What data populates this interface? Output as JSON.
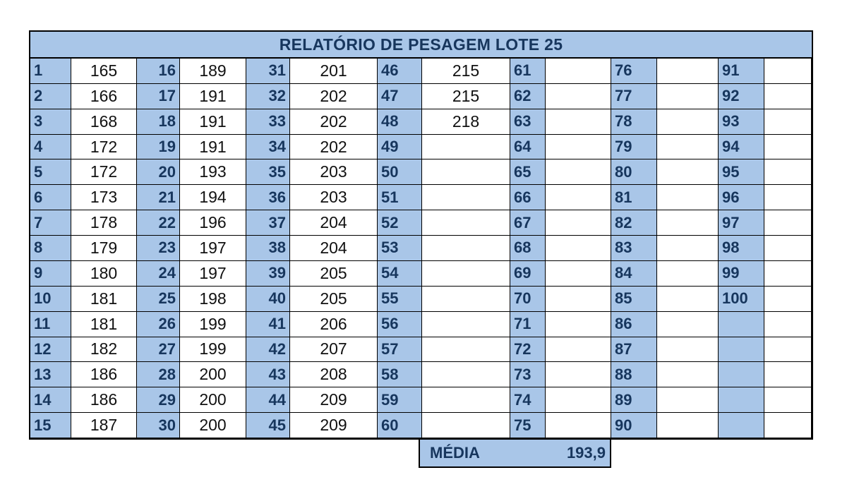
{
  "title": "RELATÓRIO DE PESAGEM LOTE 25",
  "weights": [
    "165",
    "166",
    "168",
    "172",
    "172",
    "173",
    "178",
    "179",
    "180",
    "181",
    "181",
    "182",
    "186",
    "186",
    "187",
    "189",
    "191",
    "191",
    "191",
    "193",
    "194",
    "196",
    "197",
    "197",
    "198",
    "199",
    "199",
    "200",
    "200",
    "200",
    "201",
    "202",
    "202",
    "202",
    "203",
    "203",
    "204",
    "204",
    "205",
    "205",
    "206",
    "207",
    "208",
    "209",
    "209",
    "215",
    "215",
    "218",
    "",
    "",
    "",
    "",
    "",
    "",
    "",
    "",
    "",
    "",
    "",
    "",
    "",
    "",
    "",
    "",
    "",
    "",
    "",
    "",
    "",
    "",
    "",
    "",
    "",
    "",
    "",
    "",
    "",
    "",
    "",
    "",
    "",
    "",
    "",
    "",
    "",
    "",
    "",
    "",
    "",
    "",
    "",
    "",
    "",
    "",
    "",
    "",
    "",
    "",
    "",
    "",
    "",
    "",
    "",
    "",
    "",
    "",
    "",
    "",
    "",
    "",
    "",
    "",
    "",
    "",
    "",
    "",
    "",
    "",
    "",
    ""
  ],
  "animal_numbers_last": 100,
  "media_label": "MÉDIA",
  "media_value": "193,9",
  "colors": {
    "header_fill": "#a9c6e8",
    "header_text": "#17365d"
  }
}
